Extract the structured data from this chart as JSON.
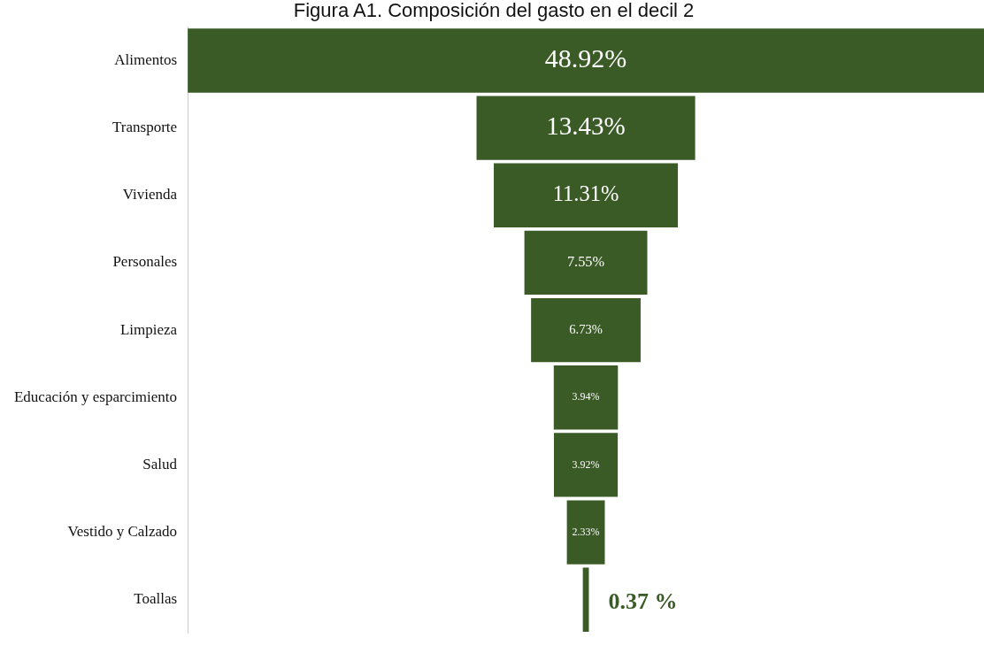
{
  "chart_data": {
    "type": "other",
    "title": "Figura A1. Composición del gasto en el decil 2",
    "categories": [
      "Alimentos",
      "Transporte",
      "Vivienda",
      "Personales",
      "Limpieza",
      "Educación y esparcimiento",
      "Salud",
      "Vestido y Calzado",
      "Toallas"
    ],
    "values": [
      48.92,
      13.43,
      11.31,
      7.55,
      6.73,
      3.94,
      3.92,
      2.33,
      0.37
    ],
    "value_labels": [
      "48.92%",
      "13.43%",
      "11.31%",
      "7.55%",
      "6.73%",
      "3.94%",
      "3.92%",
      "2.33%",
      "0.37 %"
    ],
    "color": "#3a5a26"
  }
}
